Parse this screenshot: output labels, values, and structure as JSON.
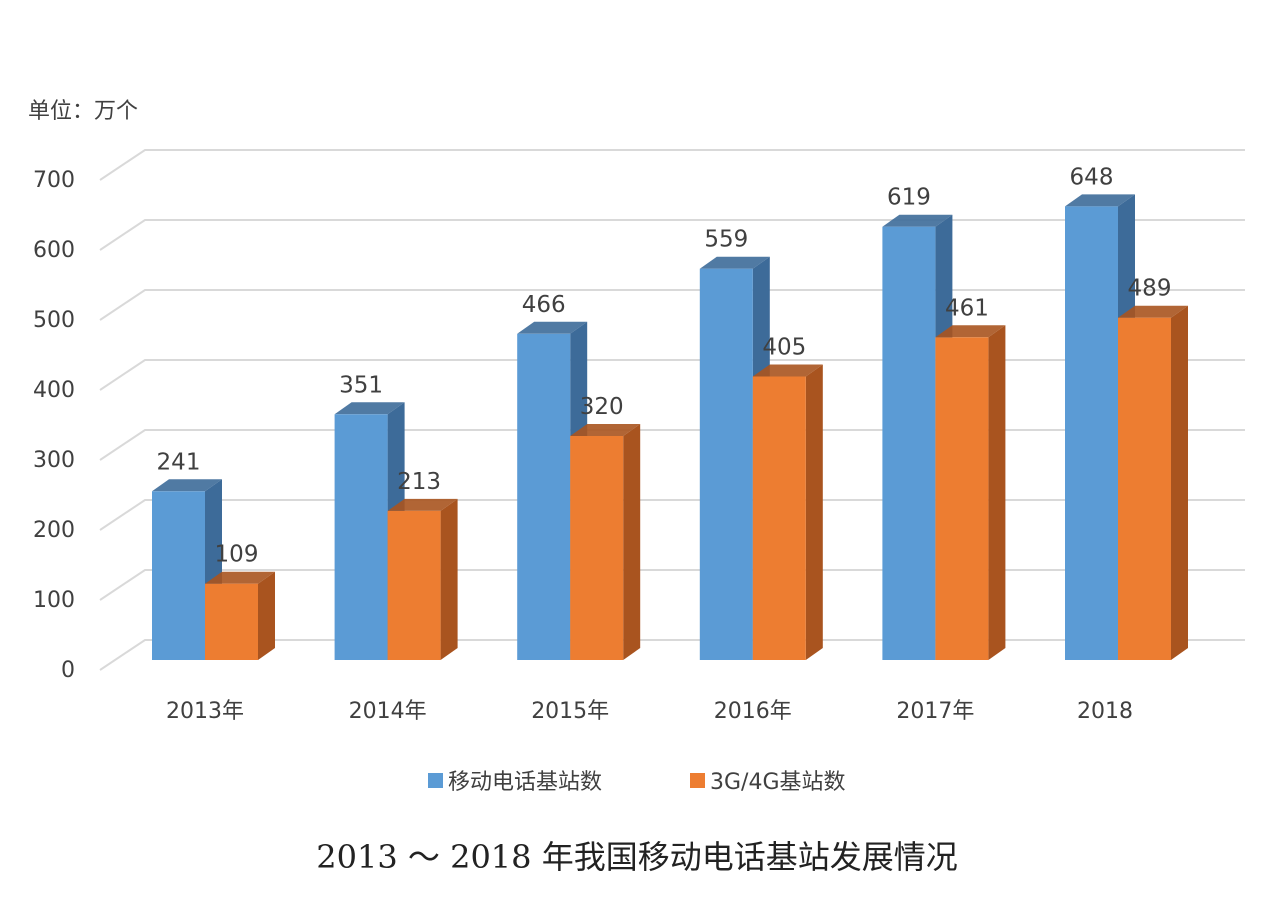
{
  "chart_data": {
    "type": "bar",
    "style": "3d-clustered",
    "unit_label": "单位：万个",
    "categories": [
      "2013年",
      "2014年",
      "2015年",
      "2016年",
      "2017年",
      "2018"
    ],
    "series": [
      {
        "name": "移动电话基站数",
        "values": [
          241,
          351,
          466,
          559,
          619,
          648
        ],
        "color": "#5b9bd5",
        "side_color": "#3d6b99"
      },
      {
        "name": "3G/4G基站数",
        "values": [
          109,
          213,
          320,
          405,
          461,
          489
        ],
        "color": "#ed7d31",
        "side_color": "#a9541f"
      }
    ],
    "ylim": [
      0,
      700
    ],
    "yticks": [
      0,
      100,
      200,
      300,
      400,
      500,
      600,
      700
    ],
    "grid": true,
    "legend_position": "bottom",
    "data_labels": true
  },
  "caption": "2013 ～ 2018 年我国移动电话基站发展情况"
}
